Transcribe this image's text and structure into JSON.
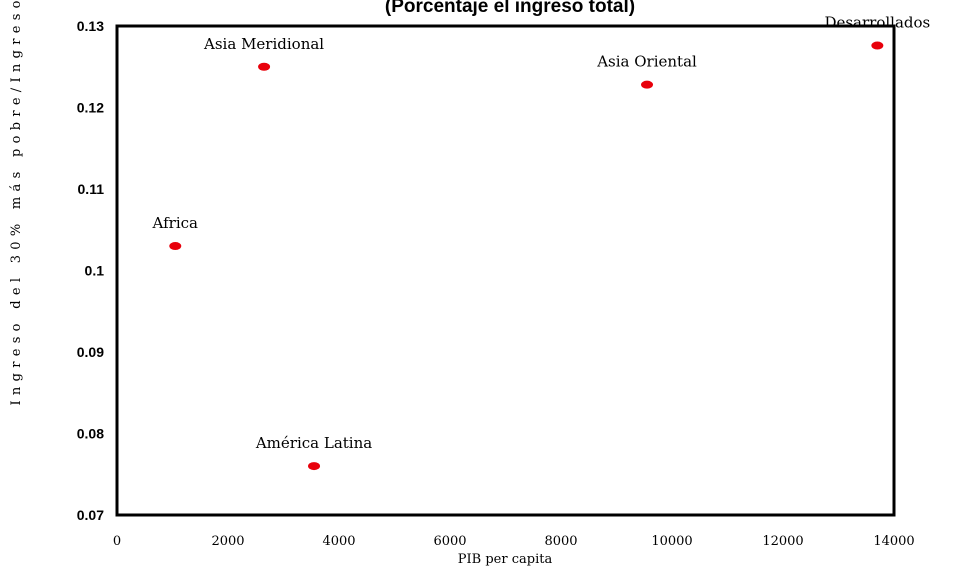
{
  "chart_data": {
    "type": "scatter",
    "title": "(Porcentaje el ingreso total)",
    "xlabel": "PIB per capita",
    "ylabel": "Ingreso del 30%  más pobre/Ingreso",
    "xlim": [
      0,
      14000
    ],
    "ylim": [
      0.07,
      0.13
    ],
    "xticks": [
      "0",
      "2000",
      "4000",
      "6000",
      "8000",
      "10000",
      "12000",
      "14000"
    ],
    "yticks": [
      "0.07",
      "0.08",
      "0.09",
      "0.1",
      "0.11",
      "0.12",
      "0.13"
    ],
    "grid": false,
    "marker_color": "#e8000b",
    "points": [
      {
        "label": "Africa",
        "x": 1050,
        "y": 0.103
      },
      {
        "label": "Asia Meridional",
        "x": 2650,
        "y": 0.125
      },
      {
        "label": "América Latina",
        "x": 3550,
        "y": 0.076
      },
      {
        "label": "Asia Oriental",
        "x": 9550,
        "y": 0.1228
      },
      {
        "label": "Desarrollados",
        "x": 13700,
        "y": 0.1276
      }
    ]
  }
}
